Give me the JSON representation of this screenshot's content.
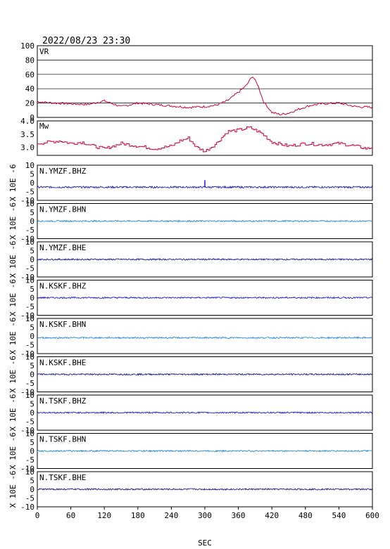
{
  "header": {
    "datetime": "2022/08/23 23:30"
  },
  "xaxis": {
    "label": "SEC",
    "ticks": [
      0,
      60,
      120,
      180,
      240,
      300,
      360,
      420,
      480,
      540,
      600
    ],
    "range": [
      0,
      600
    ]
  },
  "colors": {
    "red": "#d6003c",
    "dark_blue": "#1a1a8c",
    "blue": "#2020c0",
    "light_blue": "#2a8cd8",
    "frame": "#000000",
    "grid": "#000000"
  },
  "panels": {
    "vr": {
      "label": "VR",
      "ticks": [
        "100",
        "80",
        "60",
        "40",
        "20",
        "0"
      ]
    },
    "mw": {
      "label": "Mw",
      "ticks": [
        "4.0",
        "3.5",
        "3.0"
      ]
    },
    "wave_ticks": [
      "10",
      "5",
      "0",
      "-5",
      "-10"
    ],
    "wave_unit": "X 10E -6",
    "traces": [
      {
        "label": "N.YMZF.BHZ"
      },
      {
        "label": "N.YMZF.BHN"
      },
      {
        "label": "N.YMZF.BHE"
      },
      {
        "label": "N.KSKF.BHZ"
      },
      {
        "label": "N.KSKF.BHN"
      },
      {
        "label": "N.KSKF.BHE"
      },
      {
        "label": "N.TSKF.BHZ"
      },
      {
        "label": "N.TSKF.BHN"
      },
      {
        "label": "N.TSKF.BHE"
      }
    ]
  },
  "chart_data": [
    {
      "type": "line",
      "title": "VR",
      "xlabel": "SEC",
      "xlim": [
        0,
        600
      ],
      "ylim": [
        0,
        100
      ],
      "grid": true,
      "series": [
        {
          "x": [
            0,
            30,
            60,
            90,
            120,
            150,
            180,
            210,
            240,
            270,
            300,
            320,
            340,
            360,
            375,
            385,
            395,
            405,
            420,
            435,
            450,
            470,
            490,
            510,
            540,
            570,
            600
          ],
          "values": [
            22,
            20,
            19,
            18,
            23,
            15,
            20,
            18,
            16,
            14,
            15,
            17,
            23,
            35,
            45,
            58,
            45,
            22,
            7,
            4,
            6,
            12,
            17,
            19,
            20,
            15,
            14
          ]
        }
      ]
    },
    {
      "type": "line",
      "title": "Mw",
      "xlabel": "SEC",
      "xlim": [
        0,
        600
      ],
      "ylim": [
        2.7,
        4.0
      ],
      "series": [
        {
          "x": [
            0,
            20,
            40,
            60,
            80,
            100,
            120,
            150,
            180,
            210,
            240,
            255,
            270,
            285,
            300,
            320,
            340,
            360,
            380,
            400,
            420,
            450,
            480,
            510,
            540,
            570,
            590,
            600
          ],
          "values": [
            3.15,
            3.2,
            3.25,
            3.15,
            3.2,
            3.05,
            2.95,
            3.15,
            3.05,
            2.95,
            3.05,
            3.25,
            3.35,
            3.0,
            2.85,
            3.15,
            3.6,
            3.65,
            3.75,
            3.55,
            3.2,
            3.05,
            3.15,
            3.1,
            3.15,
            3.05,
            2.95,
            3.0
          ]
        }
      ]
    },
    {
      "type": "line",
      "title": "N.YMZF.BHZ",
      "ylim": [
        -10,
        10
      ],
      "baseline": -2.5,
      "amplitude": 0.5,
      "spike": {
        "x": 300,
        "y": 1.5
      }
    },
    {
      "type": "line",
      "title": "N.YMZF.BHN",
      "ylim": [
        -10,
        10
      ],
      "baseline": 0,
      "amplitude": 0.4
    },
    {
      "type": "line",
      "title": "N.YMZF.BHE",
      "ylim": [
        -10,
        10
      ],
      "baseline": 0,
      "amplitude": 0.4
    },
    {
      "type": "line",
      "title": "N.KSKF.BHZ",
      "ylim": [
        -10,
        10
      ],
      "baseline": 0,
      "amplitude": 0.4
    },
    {
      "type": "line",
      "title": "N.KSKF.BHN",
      "ylim": [
        -10,
        10
      ],
      "baseline": -1,
      "amplitude": 0.4
    },
    {
      "type": "line",
      "title": "N.KSKF.BHE",
      "ylim": [
        -10,
        10
      ],
      "baseline": 0,
      "amplitude": 0.4
    },
    {
      "type": "line",
      "title": "N.TSKF.BHZ",
      "ylim": [
        -10,
        10
      ],
      "baseline": 0,
      "amplitude": 0.4
    },
    {
      "type": "line",
      "title": "N.TSKF.BHN",
      "ylim": [
        -10,
        10
      ],
      "baseline": 0,
      "amplitude": 0.4
    },
    {
      "type": "line",
      "title": "N.TSKF.BHE",
      "ylim": [
        -10,
        10
      ],
      "baseline": 0,
      "amplitude": 0.4
    }
  ]
}
